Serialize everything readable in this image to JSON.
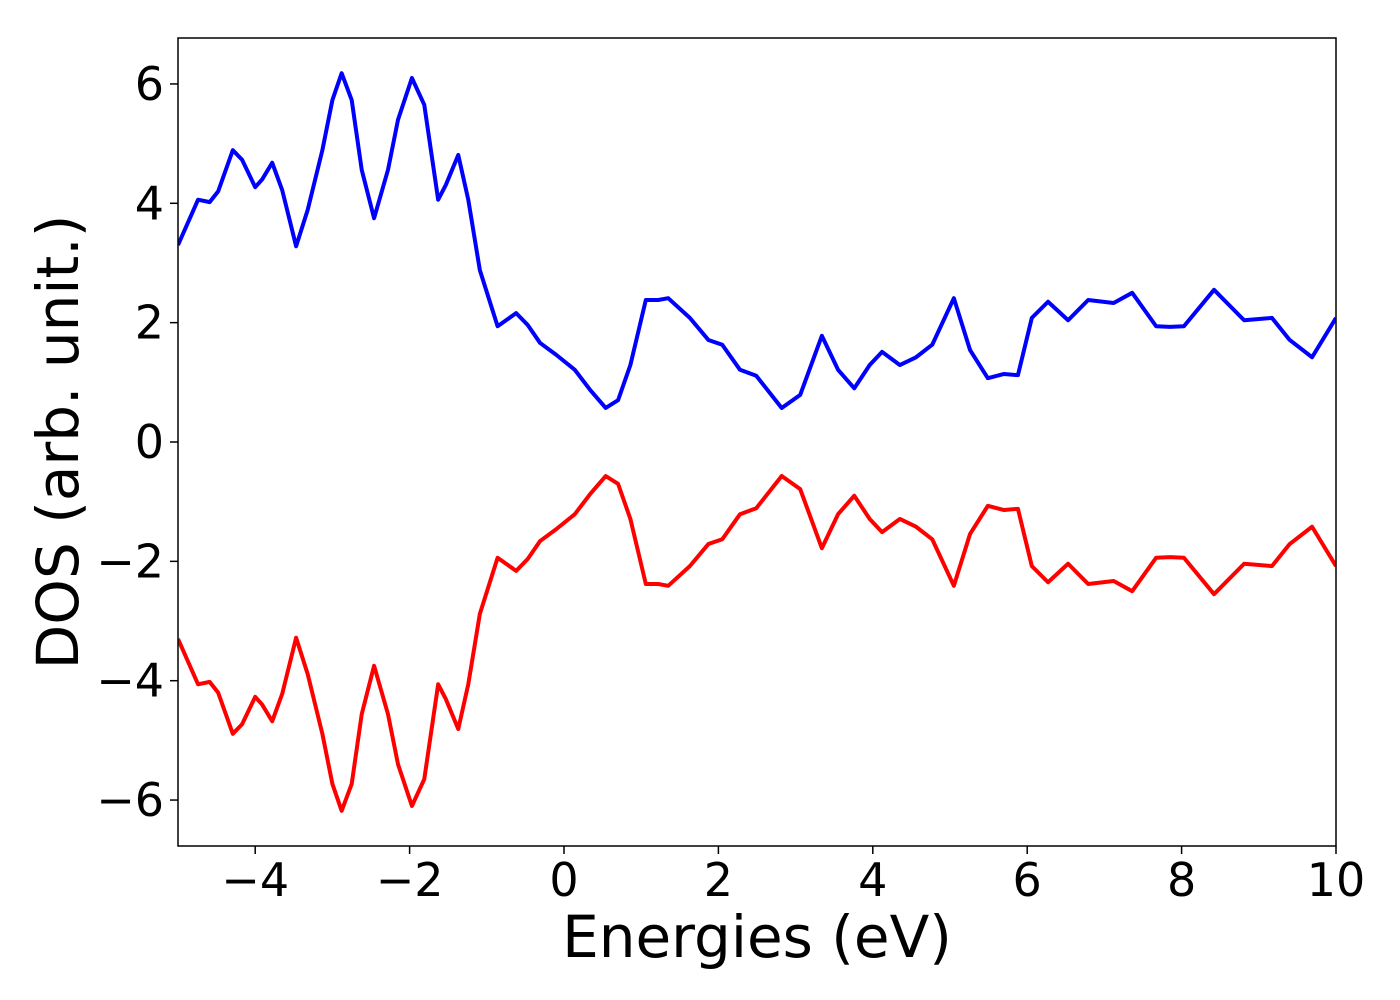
{
  "chart_data": {
    "type": "line",
    "xlabel": "Energies (eV)",
    "ylabel": "DOS (arb. unit.)",
    "x": [
      -5,
      -4.74,
      -4.59,
      -4.48,
      -4.29,
      -4.17,
      -4.0,
      -3.91,
      -3.78,
      -3.65,
      -3.47,
      -3.32,
      -3.13,
      -3.0,
      -2.88,
      -2.75,
      -2.62,
      -2.46,
      -2.28,
      -2.15,
      -1.97,
      -1.81,
      -1.63,
      -1.53,
      -1.37,
      -1.24,
      -1.09,
      -0.86,
      -0.62,
      -0.47,
      -0.31,
      -0.1,
      0.14,
      0.34,
      0.54,
      0.7,
      0.86,
      1.06,
      1.22,
      1.35,
      1.63,
      1.87,
      2.05,
      2.28,
      2.49,
      2.82,
      3.06,
      3.34,
      3.55,
      3.76,
      3.96,
      4.12,
      4.35,
      4.56,
      4.77,
      5.05,
      5.26,
      5.49,
      5.7,
      5.88,
      6.06,
      6.27,
      6.53,
      6.79,
      7.12,
      7.36,
      7.67,
      7.85,
      8.03,
      8.42,
      8.81,
      9.17,
      9.4,
      9.69,
      10
    ],
    "series": [
      {
        "color": "#0000ff",
        "values": [
          3.3,
          4.06,
          4.02,
          4.2,
          4.89,
          4.73,
          4.27,
          4.4,
          4.68,
          4.22,
          3.28,
          3.89,
          4.89,
          5.73,
          6.18,
          5.73,
          4.56,
          3.75,
          4.56,
          5.4,
          6.1,
          5.65,
          4.06,
          4.31,
          4.81,
          4.06,
          2.88,
          1.94,
          2.16,
          1.96,
          1.66,
          1.46,
          1.21,
          0.87,
          0.57,
          0.7,
          1.29,
          2.38,
          2.38,
          2.41,
          2.08,
          1.71,
          1.63,
          1.21,
          1.11,
          0.57,
          0.79,
          1.78,
          1.21,
          0.9,
          1.29,
          1.51,
          1.29,
          1.42,
          1.63,
          2.41,
          1.54,
          1.07,
          1.14,
          1.12,
          2.08,
          2.35,
          2.04,
          2.38,
          2.33,
          2.5,
          1.94,
          1.93,
          1.94,
          2.55,
          2.04,
          2.08,
          1.71,
          1.42,
          2.08
        ]
      },
      {
        "color": "#ff0000",
        "values": [
          -3.3,
          -4.06,
          -4.02,
          -4.2,
          -4.89,
          -4.73,
          -4.27,
          -4.4,
          -4.68,
          -4.22,
          -3.28,
          -3.89,
          -4.89,
          -5.73,
          -6.18,
          -5.73,
          -4.56,
          -3.75,
          -4.56,
          -5.4,
          -6.1,
          -5.65,
          -4.06,
          -4.31,
          -4.81,
          -4.06,
          -2.88,
          -1.94,
          -2.16,
          -1.96,
          -1.66,
          -1.46,
          -1.21,
          -0.87,
          -0.57,
          -0.7,
          -1.29,
          -2.38,
          -2.38,
          -2.41,
          -2.08,
          -1.71,
          -1.63,
          -1.21,
          -1.11,
          -0.57,
          -0.79,
          -1.78,
          -1.21,
          -0.9,
          -1.29,
          -1.51,
          -1.29,
          -1.42,
          -1.63,
          -2.41,
          -1.54,
          -1.07,
          -1.14,
          -1.12,
          -2.08,
          -2.35,
          -2.04,
          -2.38,
          -2.33,
          -2.5,
          -1.94,
          -1.93,
          -1.94,
          -2.55,
          -2.04,
          -2.08,
          -1.71,
          -1.42,
          -2.08
        ]
      }
    ],
    "xlim": [
      -5,
      10
    ],
    "xticks": [
      {
        "value": -4,
        "label": "−4"
      },
      {
        "value": -2,
        "label": "−2"
      },
      0,
      2,
      4,
      6,
      8,
      10
    ],
    "ylim": [
      -6.77,
      6.77
    ],
    "yticks": [
      {
        "value": -6,
        "label": "−6"
      },
      {
        "value": -4,
        "label": "−4"
      },
      {
        "value": -2,
        "label": "−2"
      },
      0,
      2,
      4,
      6
    ]
  }
}
